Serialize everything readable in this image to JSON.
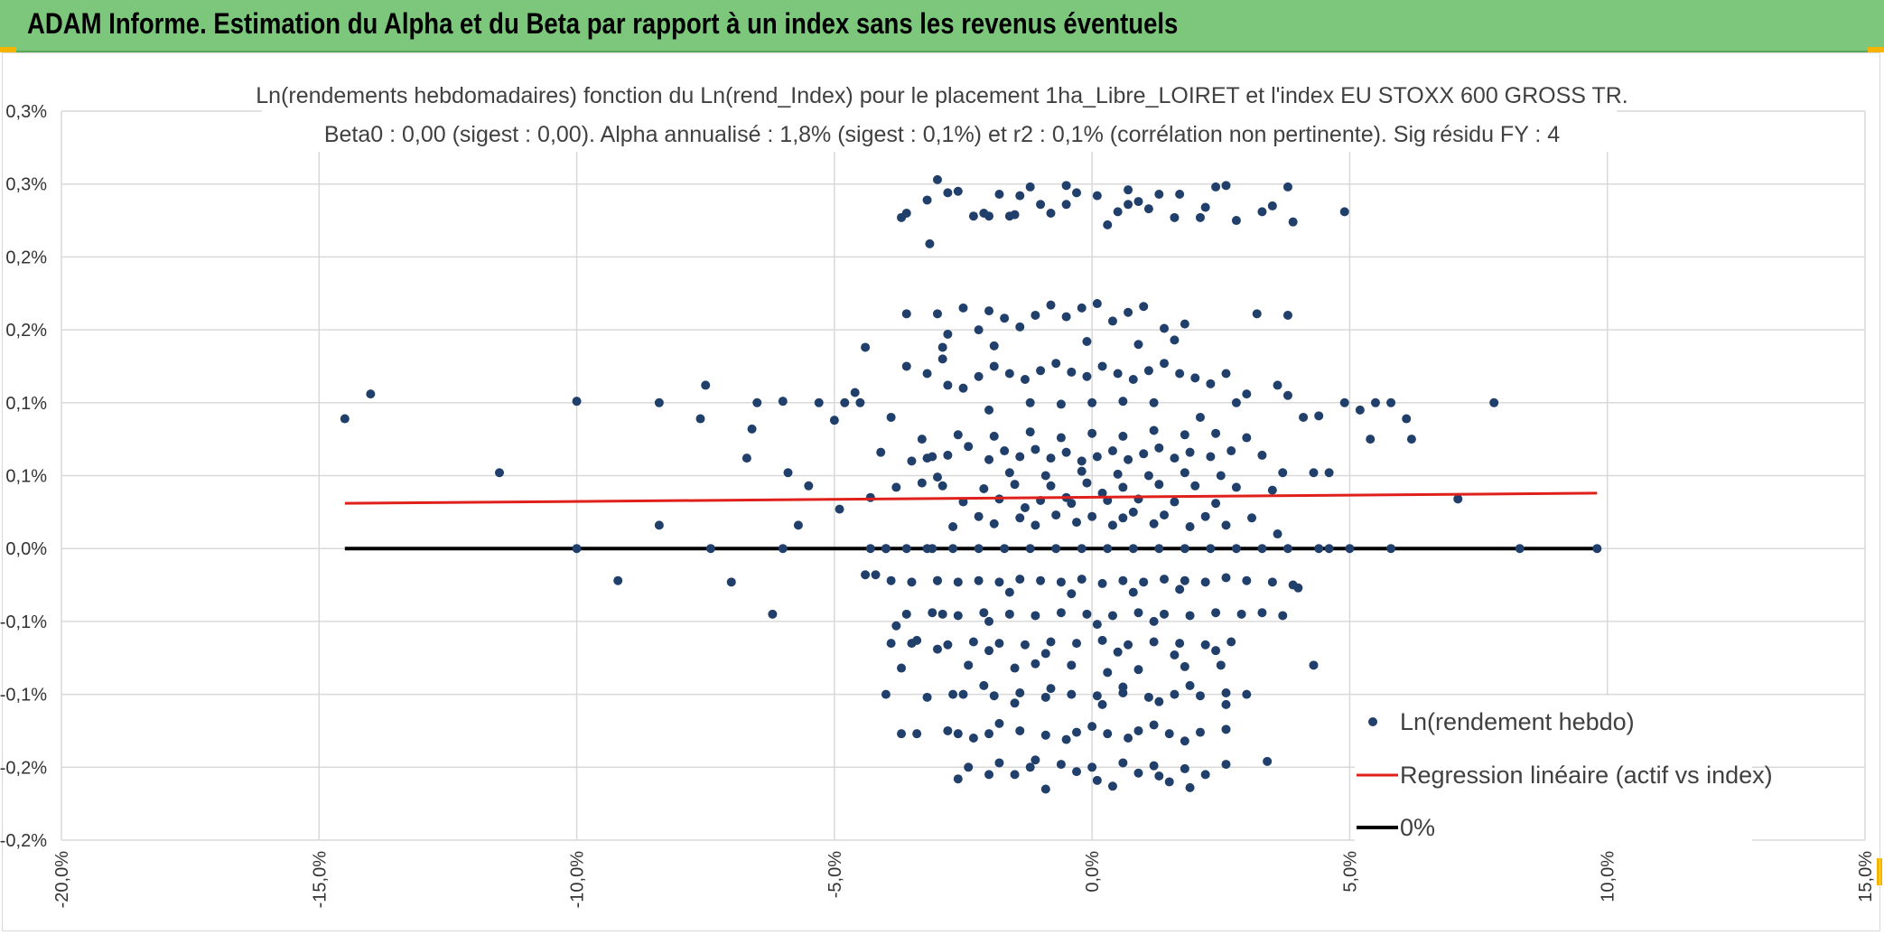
{
  "page": {
    "banner_title": "ADAM Informe. Estimation du Alpha et du Beta par rapport à un index sans les revenus éventuels"
  },
  "colors": {
    "banner": "#7cc77c",
    "points": "#213f6b",
    "regression": "#e0201b",
    "zero_line": "#000000",
    "grid": "#d9d9d9"
  },
  "chart_data": {
    "type": "scatter",
    "title": "Ln(rendements hebdomadaires) fonction du Ln(rend_Index) pour le placement 1ha_Libre_LOIRET et l'index EU STOXX 600 GROSS TR.",
    "subtitle": "Beta0 : 0,00 (sigest : 0,00). Alpha annualisé : 1,8% (sigest : 0,1%) et r2 : 0,1% (corrélation non pertinente). Sig résidu FY : 4",
    "xlabel": "",
    "ylabel": "",
    "xlim": [
      -20,
      15
    ],
    "ylim": [
      -0.2,
      0.3
    ],
    "x_ticks": [
      -20,
      -15,
      -10,
      -5,
      0,
      5,
      10,
      15
    ],
    "x_tick_labels": [
      "-20,0%",
      "-15,0%",
      "-10,0%",
      "-5,0%",
      "0,0%",
      "5,0%",
      "10,0%",
      "15,0%"
    ],
    "y_ticks": [
      0.3,
      0.25,
      0.2,
      0.15,
      0.1,
      0.05,
      0.0,
      -0.05,
      -0.1,
      -0.15,
      -0.2
    ],
    "y_tick_labels": [
      "0,3%",
      "0,3%",
      "0,2%",
      "0,2%",
      "0,1%",
      "0,1%",
      "0,0%",
      "-0,1%",
      "-0,1%",
      "-0,2%",
      "-0,2%"
    ],
    "grid": true,
    "legend_position": "bottom-right",
    "legend": [
      {
        "label": "Ln(rendement hebdo)",
        "kind": "marker"
      },
      {
        "label": "Regression linéaire (actif vs index)",
        "kind": "line-red"
      },
      {
        "label": "0%",
        "kind": "line-black"
      }
    ],
    "regression_line": {
      "x": [
        -14.5,
        9.8
      ],
      "y": [
        0.031,
        0.038
      ]
    },
    "zero_line": {
      "x": [
        -14.5,
        9.8
      ],
      "y": [
        0.0,
        0.0
      ]
    },
    "points": [
      [
        -14.5,
        0.089
      ],
      [
        -14.0,
        0.106
      ],
      [
        -11.5,
        0.052
      ],
      [
        -10.0,
        0.101
      ],
      [
        -10.0,
        0.0
      ],
      [
        -9.2,
        -0.022
      ],
      [
        -8.4,
        0.016
      ],
      [
        -8.4,
        0.1
      ],
      [
        -7.5,
        0.112
      ],
      [
        -7.6,
        0.089
      ],
      [
        -7.4,
        0.0
      ],
      [
        -7.0,
        -0.023
      ],
      [
        -6.7,
        0.062
      ],
      [
        -6.6,
        0.082
      ],
      [
        -6.5,
        0.1
      ],
      [
        -6.2,
        -0.045
      ],
      [
        -6.0,
        0.101
      ],
      [
        -6.0,
        0.0
      ],
      [
        -5.9,
        0.052
      ],
      [
        -5.7,
        0.016
      ],
      [
        -5.5,
        0.043
      ],
      [
        -5.3,
        0.1
      ],
      [
        -5.0,
        0.088
      ],
      [
        -4.9,
        0.027
      ],
      [
        -4.8,
        0.1
      ],
      [
        -4.6,
        0.107
      ],
      [
        -4.5,
        0.1
      ],
      [
        -4.4,
        0.138
      ],
      [
        -4.3,
        0.035
      ],
      [
        -4.2,
        -0.018
      ],
      [
        -4.1,
        0.066
      ],
      [
        -4.0,
        0.0
      ],
      [
        -3.9,
        0.09
      ],
      [
        -3.8,
        -0.053
      ],
      [
        -3.7,
        -0.082
      ],
      [
        -3.6,
        0.161
      ],
      [
        -3.5,
        -0.065
      ],
      [
        -3.4,
        -0.127
      ],
      [
        -3.3,
        0.045
      ],
      [
        -3.2,
        0.062
      ],
      [
        -3.1,
        0.0
      ],
      [
        -3.0,
        -0.022
      ],
      [
        -2.9,
        -0.045
      ],
      [
        -2.8,
        0.112
      ],
      [
        -2.7,
        -0.1
      ],
      [
        -2.6,
        -0.127
      ],
      [
        -3.7,
        0.227
      ],
      [
        -3.6,
        0.23
      ],
      [
        -3.2,
        0.239
      ],
      [
        -3.15,
        0.209
      ],
      [
        -3.0,
        0.253
      ],
      [
        -2.8,
        0.244
      ],
      [
        -2.6,
        0.245
      ],
      [
        -2.3,
        0.228
      ],
      [
        -2.0,
        0.228
      ],
      [
        -1.8,
        0.243
      ],
      [
        -1.6,
        0.228
      ],
      [
        -1.5,
        0.229
      ],
      [
        -1.2,
        0.248
      ],
      [
        -1.0,
        0.236
      ],
      [
        -0.8,
        0.23
      ],
      [
        -0.5,
        0.249
      ],
      [
        -0.3,
        0.244
      ],
      [
        0.1,
        0.242
      ],
      [
        0.3,
        0.222
      ],
      [
        0.5,
        0.231
      ],
      [
        0.7,
        0.246
      ],
      [
        0.9,
        0.238
      ],
      [
        1.1,
        0.233
      ],
      [
        1.3,
        0.243
      ],
      [
        1.7,
        0.243
      ],
      [
        2.1,
        0.227
      ],
      [
        2.4,
        0.248
      ],
      [
        2.6,
        0.249
      ],
      [
        2.8,
        0.225
      ],
      [
        3.3,
        0.231
      ],
      [
        3.5,
        0.235
      ],
      [
        3.8,
        0.248
      ],
      [
        3.9,
        0.224
      ],
      [
        4.9,
        0.231
      ],
      [
        -1.4,
        0.242
      ],
      [
        -2.1,
        0.23
      ],
      [
        0.7,
        0.236
      ],
      [
        1.6,
        0.227
      ],
      [
        -0.5,
        0.236
      ],
      [
        2.2,
        0.234
      ],
      [
        -3.0,
        0.161
      ],
      [
        -2.8,
        0.147
      ],
      [
        -2.5,
        0.165
      ],
      [
        -2.2,
        0.15
      ],
      [
        -2.0,
        0.163
      ],
      [
        -1.7,
        0.158
      ],
      [
        -1.4,
        0.152
      ],
      [
        -1.1,
        0.16
      ],
      [
        -0.8,
        0.167
      ],
      [
        -0.5,
        0.159
      ],
      [
        -0.2,
        0.165
      ],
      [
        0.1,
        0.168
      ],
      [
        0.4,
        0.156
      ],
      [
        0.7,
        0.162
      ],
      [
        1.0,
        0.166
      ],
      [
        1.4,
        0.151
      ],
      [
        1.8,
        0.154
      ],
      [
        3.2,
        0.161
      ],
      [
        3.8,
        0.16
      ],
      [
        -2.9,
        0.138
      ],
      [
        -0.1,
        0.142
      ],
      [
        0.9,
        0.14
      ],
      [
        1.6,
        0.143
      ],
      [
        -1.9,
        0.139
      ],
      [
        -3.6,
        0.125
      ],
      [
        -3.2,
        0.12
      ],
      [
        -2.9,
        0.13
      ],
      [
        -2.5,
        0.11
      ],
      [
        -2.2,
        0.118
      ],
      [
        -1.9,
        0.125
      ],
      [
        -1.6,
        0.12
      ],
      [
        -1.3,
        0.116
      ],
      [
        -1.0,
        0.122
      ],
      [
        -0.7,
        0.127
      ],
      [
        -0.4,
        0.121
      ],
      [
        -0.1,
        0.118
      ],
      [
        0.2,
        0.125
      ],
      [
        0.5,
        0.12
      ],
      [
        0.8,
        0.116
      ],
      [
        1.1,
        0.122
      ],
      [
        1.4,
        0.127
      ],
      [
        1.7,
        0.12
      ],
      [
        2.0,
        0.117
      ],
      [
        2.3,
        0.113
      ],
      [
        2.6,
        0.12
      ],
      [
        3.0,
        0.106
      ],
      [
        3.6,
        0.112
      ],
      [
        4.1,
        0.09
      ],
      [
        4.4,
        0.091
      ],
      [
        4.9,
        0.1
      ],
      [
        5.2,
        0.095
      ],
      [
        5.5,
        0.1
      ],
      [
        5.8,
        0.1
      ],
      [
        6.1,
        0.089
      ],
      [
        6.2,
        0.075
      ],
      [
        7.8,
        0.1
      ],
      [
        5.4,
        0.075
      ],
      [
        3.8,
        0.105
      ],
      [
        2.8,
        0.1
      ],
      [
        2.1,
        0.09
      ],
      [
        -2.0,
        0.095
      ],
      [
        -1.2,
        0.1
      ],
      [
        -0.6,
        0.099
      ],
      [
        0.0,
        0.1
      ],
      [
        0.6,
        0.101
      ],
      [
        1.2,
        0.1
      ],
      [
        -3.5,
        0.06
      ],
      [
        -3.1,
        0.063
      ],
      [
        -2.8,
        0.064
      ],
      [
        -2.4,
        0.07
      ],
      [
        -2.0,
        0.061
      ],
      [
        -1.7,
        0.067
      ],
      [
        -1.4,
        0.063
      ],
      [
        -1.1,
        0.068
      ],
      [
        -0.8,
        0.062
      ],
      [
        -0.5,
        0.066
      ],
      [
        -0.2,
        0.06
      ],
      [
        0.1,
        0.063
      ],
      [
        0.4,
        0.067
      ],
      [
        0.7,
        0.061
      ],
      [
        1.0,
        0.065
      ],
      [
        1.3,
        0.069
      ],
      [
        1.6,
        0.062
      ],
      [
        1.9,
        0.066
      ],
      [
        2.3,
        0.063
      ],
      [
        2.7,
        0.067
      ],
      [
        3.3,
        0.064
      ],
      [
        3.7,
        0.052
      ],
      [
        4.3,
        0.052
      ],
      [
        4.6,
        0.052
      ],
      [
        -3.3,
        0.075
      ],
      [
        -2.6,
        0.078
      ],
      [
        -1.9,
        0.077
      ],
      [
        -1.2,
        0.08
      ],
      [
        -0.6,
        0.076
      ],
      [
        0.0,
        0.079
      ],
      [
        0.6,
        0.077
      ],
      [
        1.2,
        0.081
      ],
      [
        1.8,
        0.078
      ],
      [
        2.4,
        0.079
      ],
      [
        3.0,
        0.076
      ],
      [
        -3.8,
        0.042
      ],
      [
        -2.9,
        0.043
      ],
      [
        -2.1,
        0.041
      ],
      [
        -1.5,
        0.044
      ],
      [
        -0.8,
        0.043
      ],
      [
        -0.1,
        0.045
      ],
      [
        0.6,
        0.042
      ],
      [
        1.3,
        0.044
      ],
      [
        2.0,
        0.043
      ],
      [
        2.8,
        0.042
      ],
      [
        3.5,
        0.04
      ],
      [
        -2.5,
        0.032
      ],
      [
        -1.8,
        0.034
      ],
      [
        -1.0,
        0.033
      ],
      [
        -0.4,
        0.031
      ],
      [
        0.3,
        0.033
      ],
      [
        0.9,
        0.034
      ],
      [
        1.6,
        0.032
      ],
      [
        2.4,
        0.031
      ],
      [
        7.1,
        0.034
      ],
      [
        -2.2,
        0.022
      ],
      [
        -1.4,
        0.021
      ],
      [
        -0.7,
        0.023
      ],
      [
        0.0,
        0.022
      ],
      [
        0.6,
        0.021
      ],
      [
        1.4,
        0.023
      ],
      [
        2.2,
        0.022
      ],
      [
        3.1,
        0.021
      ],
      [
        -2.7,
        0.015
      ],
      [
        -1.9,
        0.017
      ],
      [
        -1.1,
        0.016
      ],
      [
        -0.3,
        0.018
      ],
      [
        0.4,
        0.016
      ],
      [
        1.2,
        0.017
      ],
      [
        1.9,
        0.015
      ],
      [
        2.6,
        0.016
      ],
      [
        -1.6,
        0.052
      ],
      [
        -0.9,
        0.05
      ],
      [
        -0.2,
        0.053
      ],
      [
        0.5,
        0.051
      ],
      [
        1.1,
        0.05
      ],
      [
        1.8,
        0.052
      ],
      [
        -3.0,
        0.049
      ],
      [
        2.5,
        0.05
      ],
      [
        3.6,
        0.01
      ],
      [
        -0.5,
        0.035
      ],
      [
        0.2,
        0.038
      ],
      [
        0.8,
        0.025
      ],
      [
        -1.3,
        0.028
      ],
      [
        -4.3,
        0.0
      ],
      [
        -4.0,
        0.0
      ],
      [
        -3.6,
        0.0
      ],
      [
        -3.2,
        0.0
      ],
      [
        -2.7,
        0.0
      ],
      [
        -2.2,
        0.0
      ],
      [
        -1.7,
        0.0
      ],
      [
        -1.2,
        0.0
      ],
      [
        -0.7,
        0.0
      ],
      [
        -0.2,
        0.0
      ],
      [
        0.3,
        0.0
      ],
      [
        0.8,
        0.0
      ],
      [
        1.3,
        0.0
      ],
      [
        1.8,
        0.0
      ],
      [
        2.3,
        0.0
      ],
      [
        2.8,
        0.0
      ],
      [
        3.3,
        0.0
      ],
      [
        3.8,
        0.0
      ],
      [
        4.4,
        0.0
      ],
      [
        4.6,
        0.0
      ],
      [
        5.0,
        0.0
      ],
      [
        5.8,
        0.0
      ],
      [
        8.3,
        0.0
      ],
      [
        9.8,
        0.0
      ],
      [
        -4.4,
        -0.018
      ],
      [
        -3.9,
        -0.022
      ],
      [
        -3.5,
        -0.023
      ],
      [
        -3.0,
        -0.022
      ],
      [
        -2.6,
        -0.023
      ],
      [
        -2.2,
        -0.022
      ],
      [
        -1.8,
        -0.023
      ],
      [
        -1.4,
        -0.021
      ],
      [
        -1.0,
        -0.022
      ],
      [
        -0.6,
        -0.023
      ],
      [
        -0.2,
        -0.021
      ],
      [
        0.2,
        -0.024
      ],
      [
        0.6,
        -0.022
      ],
      [
        1.0,
        -0.023
      ],
      [
        1.4,
        -0.021
      ],
      [
        1.8,
        -0.022
      ],
      [
        2.2,
        -0.023
      ],
      [
        2.6,
        -0.02
      ],
      [
        3.0,
        -0.022
      ],
      [
        3.5,
        -0.023
      ],
      [
        3.9,
        -0.025
      ],
      [
        4.0,
        -0.027
      ],
      [
        -1.6,
        -0.03
      ],
      [
        -0.4,
        -0.031
      ],
      [
        0.8,
        -0.03
      ],
      [
        1.7,
        -0.028
      ],
      [
        -3.6,
        -0.045
      ],
      [
        -3.1,
        -0.044
      ],
      [
        -2.6,
        -0.046
      ],
      [
        -2.1,
        -0.044
      ],
      [
        -1.6,
        -0.045
      ],
      [
        -1.1,
        -0.046
      ],
      [
        -0.6,
        -0.044
      ],
      [
        -0.1,
        -0.045
      ],
      [
        0.4,
        -0.046
      ],
      [
        0.9,
        -0.044
      ],
      [
        1.4,
        -0.045
      ],
      [
        1.9,
        -0.046
      ],
      [
        2.4,
        -0.044
      ],
      [
        2.9,
        -0.045
      ],
      [
        3.3,
        -0.044
      ],
      [
        3.7,
        -0.046
      ],
      [
        -2.0,
        -0.05
      ],
      [
        0.1,
        -0.052
      ],
      [
        1.2,
        -0.05
      ],
      [
        -3.9,
        -0.065
      ],
      [
        -3.4,
        -0.063
      ],
      [
        -2.8,
        -0.066
      ],
      [
        -2.3,
        -0.064
      ],
      [
        -1.8,
        -0.065
      ],
      [
        -1.3,
        -0.066
      ],
      [
        -0.8,
        -0.064
      ],
      [
        -0.3,
        -0.065
      ],
      [
        0.2,
        -0.063
      ],
      [
        0.7,
        -0.066
      ],
      [
        1.2,
        -0.064
      ],
      [
        1.7,
        -0.065
      ],
      [
        2.2,
        -0.066
      ],
      [
        2.7,
        -0.064
      ],
      [
        -2.0,
        -0.07
      ],
      [
        -0.9,
        -0.072
      ],
      [
        0.5,
        -0.071
      ],
      [
        1.6,
        -0.073
      ],
      [
        2.4,
        -0.07
      ],
      [
        -3.0,
        -0.069
      ],
      [
        -2.4,
        -0.08
      ],
      [
        -1.5,
        -0.082
      ],
      [
        -0.4,
        -0.08
      ],
      [
        0.9,
        -0.083
      ],
      [
        1.8,
        -0.081
      ],
      [
        2.5,
        -0.08
      ],
      [
        4.3,
        -0.08
      ],
      [
        -1.1,
        -0.079
      ],
      [
        0.3,
        -0.085
      ],
      [
        -4.0,
        -0.1
      ],
      [
        -3.2,
        -0.102
      ],
      [
        -2.5,
        -0.1
      ],
      [
        -1.9,
        -0.101
      ],
      [
        -1.4,
        -0.099
      ],
      [
        -0.9,
        -0.102
      ],
      [
        -0.4,
        -0.1
      ],
      [
        0.1,
        -0.101
      ],
      [
        0.6,
        -0.099
      ],
      [
        1.1,
        -0.102
      ],
      [
        1.6,
        -0.1
      ],
      [
        2.1,
        -0.101
      ],
      [
        2.6,
        -0.099
      ],
      [
        3.0,
        -0.1
      ],
      [
        -2.1,
        -0.094
      ],
      [
        -0.8,
        -0.096
      ],
      [
        0.6,
        -0.095
      ],
      [
        1.9,
        -0.094
      ],
      [
        -1.5,
        -0.106
      ],
      [
        0.2,
        -0.107
      ],
      [
        1.3,
        -0.105
      ],
      [
        2.6,
        -0.107
      ],
      [
        -3.7,
        -0.127
      ],
      [
        -2.8,
        -0.125
      ],
      [
        -2.0,
        -0.127
      ],
      [
        -1.4,
        -0.125
      ],
      [
        -0.9,
        -0.128
      ],
      [
        -0.3,
        -0.126
      ],
      [
        0.3,
        -0.127
      ],
      [
        0.9,
        -0.125
      ],
      [
        1.5,
        -0.127
      ],
      [
        2.1,
        -0.126
      ],
      [
        2.6,
        -0.124
      ],
      [
        -1.8,
        -0.12
      ],
      [
        0.0,
        -0.122
      ],
      [
        1.2,
        -0.121
      ],
      [
        -2.3,
        -0.13
      ],
      [
        -0.5,
        -0.131
      ],
      [
        0.7,
        -0.13
      ],
      [
        1.8,
        -0.132
      ],
      [
        -2.4,
        -0.15
      ],
      [
        -1.8,
        -0.147
      ],
      [
        -1.2,
        -0.15
      ],
      [
        -0.6,
        -0.148
      ],
      [
        0.0,
        -0.15
      ],
      [
        0.6,
        -0.147
      ],
      [
        1.2,
        -0.149
      ],
      [
        1.8,
        -0.151
      ],
      [
        2.6,
        -0.148
      ],
      [
        3.4,
        -0.146
      ],
      [
        -1.5,
        -0.155
      ],
      [
        -0.3,
        -0.153
      ],
      [
        0.9,
        -0.154
      ],
      [
        1.5,
        -0.16
      ],
      [
        -0.9,
        -0.165
      ],
      [
        0.4,
        -0.163
      ],
      [
        1.9,
        -0.164
      ],
      [
        -2.6,
        -0.158
      ],
      [
        -2.0,
        -0.155
      ],
      [
        0.1,
        -0.159
      ],
      [
        1.3,
        -0.156
      ],
      [
        -1.1,
        -0.145
      ],
      [
        2.2,
        -0.155
      ]
    ]
  }
}
